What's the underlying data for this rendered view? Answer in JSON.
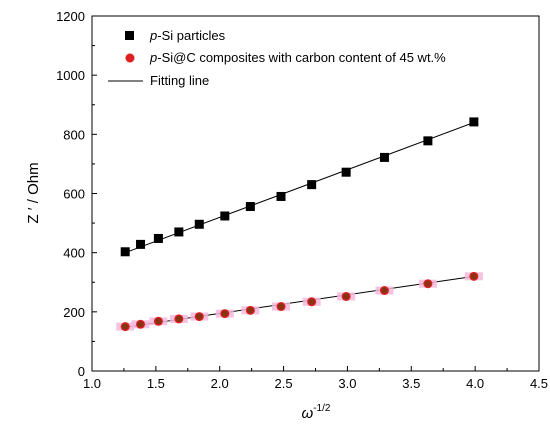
{
  "chart_data": {
    "type": "scatter",
    "xlabel": {
      "base": "ω",
      "sup": "-1/2"
    },
    "ylabel": "Z ′ / Ohm",
    "xlim": [
      1.0,
      4.5
    ],
    "ylim": [
      0,
      1200
    ],
    "xticks": [
      "1.0",
      "1.5",
      "2.0",
      "2.5",
      "3.0",
      "3.5",
      "4.0",
      "4.5"
    ],
    "yticks": [
      "0",
      "200",
      "400",
      "600",
      "800",
      "1000",
      "1200"
    ],
    "legend_position": "top-left",
    "series": [
      {
        "name_italic": "p",
        "name_rest": "-Si particles",
        "marker": "square",
        "color": "#000000",
        "x": [
          1.26,
          1.38,
          1.52,
          1.68,
          1.84,
          2.04,
          2.24,
          2.48,
          2.72,
          2.99,
          3.29,
          3.63,
          3.99
        ],
        "y": [
          403,
          428,
          448,
          470,
          496,
          524,
          556,
          590,
          630,
          672,
          722,
          778,
          842
        ]
      },
      {
        "name_italic": "p",
        "name_rest": "-Si@C composites with carbon content of 45 wt.%",
        "marker": "circle",
        "color": "#e02020",
        "halo_color": "#f4b8dc",
        "x": [
          1.26,
          1.38,
          1.52,
          1.68,
          1.84,
          2.04,
          2.24,
          2.48,
          2.72,
          2.99,
          3.29,
          3.63,
          3.99
        ],
        "y": [
          150,
          158,
          168,
          176,
          184,
          194,
          205,
          218,
          234,
          252,
          272,
          295,
          320
        ]
      }
    ],
    "fit_lines": [
      {
        "x": [
          1.26,
          3.99
        ],
        "y": [
          400,
          840
        ]
      },
      {
        "x": [
          1.26,
          3.99
        ],
        "y": [
          148,
          320
        ]
      }
    ],
    "fit_legend_label": "Fitting line"
  }
}
